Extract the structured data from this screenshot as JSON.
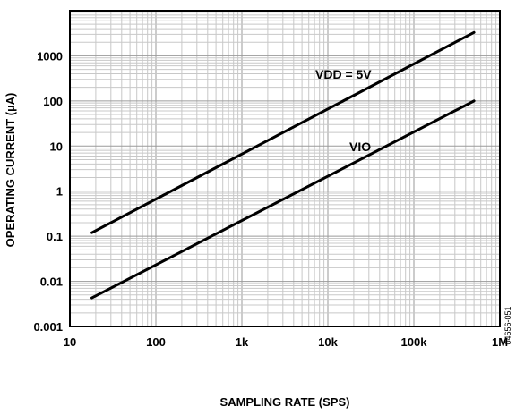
{
  "chart_data": {
    "type": "line",
    "title": "",
    "xlabel": "SAMPLING RATE (SPS)",
    "ylabel": "OPERATING CURRENT (µA)",
    "xscale": "log",
    "yscale": "log",
    "xlim": [
      10,
      1000000
    ],
    "ylim": [
      0.001,
      10000
    ],
    "grid": true,
    "x_ticks": [
      {
        "value": 10,
        "label": "10"
      },
      {
        "value": 100,
        "label": "100"
      },
      {
        "value": 1000,
        "label": "1k"
      },
      {
        "value": 10000,
        "label": "10k"
      },
      {
        "value": 100000,
        "label": "100k"
      },
      {
        "value": 1000000,
        "label": "1M"
      }
    ],
    "y_ticks": [
      {
        "value": 0.001,
        "label": "0.001"
      },
      {
        "value": 0.01,
        "label": "0.01"
      },
      {
        "value": 0.1,
        "label": "0.1"
      },
      {
        "value": 1,
        "label": "1"
      },
      {
        "value": 10,
        "label": "10"
      },
      {
        "value": 100,
        "label": "100"
      },
      {
        "value": 1000,
        "label": "1000"
      }
    ],
    "series": [
      {
        "name": "VDD = 5V",
        "x": [
          18,
          500000
        ],
        "y": [
          0.12,
          3300
        ]
      },
      {
        "name": "VIO",
        "x": [
          18,
          500000
        ],
        "y": [
          0.0043,
          100
        ]
      }
    ],
    "figure_id": "04656-051"
  }
}
